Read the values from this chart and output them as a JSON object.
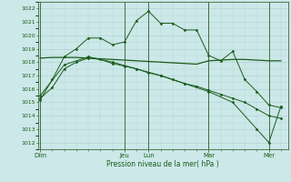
{
  "title": "",
  "xlabel": "Pression niveau de la mer( hPa )",
  "ylabel": "",
  "bg_color": "#cce8e8",
  "grid_color": "#aad0d0",
  "line_color": "#1a5c1a",
  "ymin": 1011.5,
  "ymax": 1022.5,
  "yticks": [
    1012,
    1013,
    1014,
    1015,
    1016,
    1017,
    1018,
    1019,
    1020,
    1021,
    1022
  ],
  "day_labels": [
    "Dim",
    "Jeu",
    "Lun",
    "Mar",
    "Mer"
  ],
  "day_positions": [
    0,
    3.5,
    4.5,
    7.0,
    9.5
  ],
  "xmin": -0.1,
  "xmax": 10.3,
  "series1_x": [
    0,
    0.5,
    1.0,
    1.5,
    2.0,
    2.5,
    3.0,
    3.5,
    4.0,
    4.5,
    5.0,
    5.5,
    6.0,
    6.5,
    7.0,
    7.5,
    8.0,
    8.5,
    9.0,
    9.5,
    10.0
  ],
  "series1_y": [
    1015.2,
    1016.7,
    1018.4,
    1019.0,
    1019.8,
    1019.8,
    1019.3,
    1019.5,
    1021.1,
    1021.8,
    1020.9,
    1020.9,
    1020.4,
    1020.4,
    1018.5,
    1018.1,
    1018.8,
    1016.7,
    1015.8,
    1014.8,
    1014.6
  ],
  "series2_x": [
    0,
    0.5,
    1.0,
    1.5,
    2.0,
    2.5,
    3.0,
    3.5,
    4.0,
    4.5,
    5.0,
    5.5,
    6.0,
    6.5,
    7.0,
    7.5,
    8.0,
    8.5,
    9.0,
    9.5,
    10.0
  ],
  "series2_y": [
    1018.3,
    1018.35,
    1018.35,
    1018.35,
    1018.3,
    1018.25,
    1018.2,
    1018.15,
    1018.1,
    1018.05,
    1018.0,
    1017.95,
    1017.9,
    1017.85,
    1018.1,
    1018.15,
    1018.2,
    1018.2,
    1018.15,
    1018.1,
    1018.1
  ],
  "series3_x": [
    0,
    0.5,
    1.0,
    1.5,
    2.0,
    2.5,
    3.0,
    3.5,
    4.0,
    4.5,
    5.0,
    5.5,
    6.0,
    6.5,
    7.0,
    7.5,
    8.0,
    8.5,
    9.0,
    9.5,
    10.0
  ],
  "series3_y": [
    1015.3,
    1016.1,
    1017.5,
    1018.0,
    1018.3,
    1018.2,
    1017.9,
    1017.7,
    1017.5,
    1017.2,
    1017.0,
    1016.7,
    1016.4,
    1016.2,
    1015.9,
    1015.6,
    1015.3,
    1015.0,
    1014.5,
    1014.0,
    1013.8
  ],
  "series4_x": [
    0,
    1.0,
    2.0,
    3.0,
    4.0,
    5.0,
    6.0,
    7.0,
    8.0,
    9.0,
    9.5,
    10.0
  ],
  "series4_y": [
    1015.5,
    1017.8,
    1018.4,
    1018.0,
    1017.5,
    1017.0,
    1016.4,
    1015.8,
    1015.0,
    1013.0,
    1012.0,
    1014.7
  ]
}
